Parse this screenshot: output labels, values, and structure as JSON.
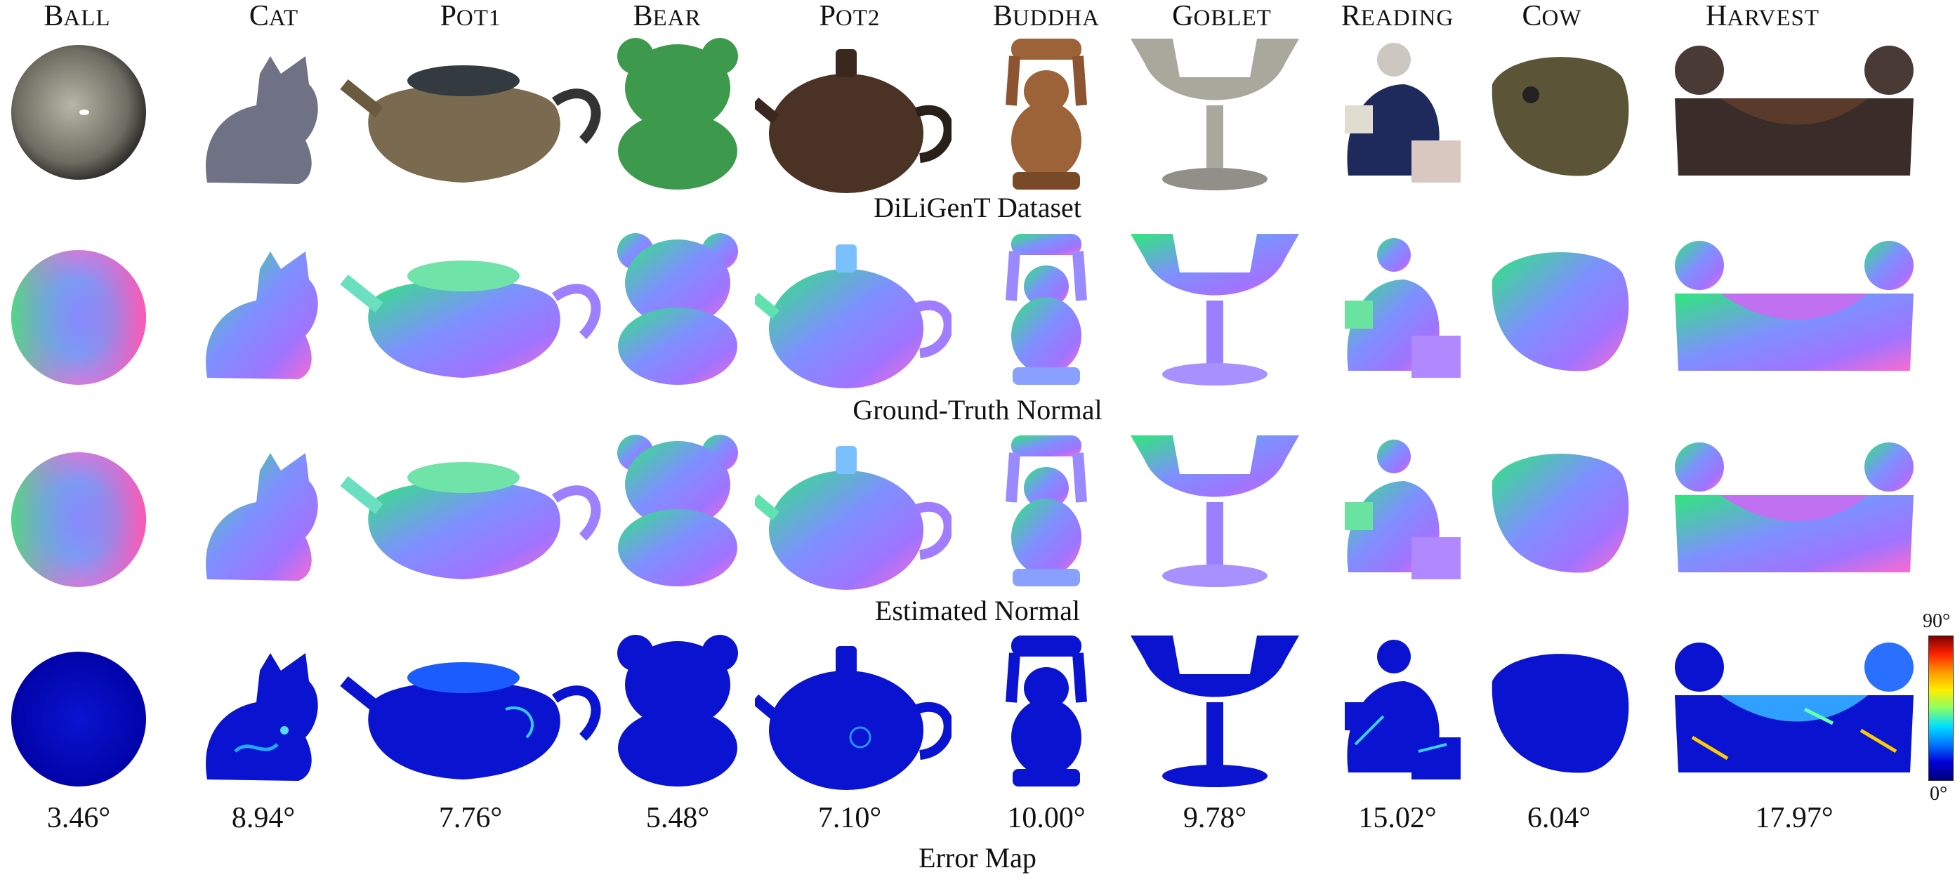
{
  "objects": [
    {
      "initial": "B",
      "rest": "all",
      "error": "3.46°"
    },
    {
      "initial": "C",
      "rest": "at",
      "error": "8.94°"
    },
    {
      "initial": "P",
      "rest": "ot1",
      "error": "7.76°"
    },
    {
      "initial": "B",
      "rest": "ear",
      "error": "5.48°"
    },
    {
      "initial": "P",
      "rest": "ot2",
      "error": "7.10°"
    },
    {
      "initial": "B",
      "rest": "uddha",
      "error": "10.00°"
    },
    {
      "initial": "G",
      "rest": "oblet",
      "error": "9.78°"
    },
    {
      "initial": "R",
      "rest": "eading",
      "error": "15.02°"
    },
    {
      "initial": "C",
      "rest": "ow",
      "error": "6.04°"
    },
    {
      "initial": "H",
      "rest": "arvest",
      "error": "17.97°"
    }
  ],
  "row_captions": {
    "dataset": "DiLiGenT Dataset",
    "ground_truth": "Ground-Truth Normal",
    "estimated": "Estimated Normal",
    "error_map": "Error Map"
  },
  "colorbar": {
    "max_label": "90°",
    "min_label": "0°"
  },
  "colors": {
    "ball_photo": "#8a8878",
    "cat_photo": "#6e7284",
    "pot1_photo": "#7a6a50",
    "bear_photo": "#3d9a4c",
    "pot2_photo": "#4a3224",
    "buddha_photo": "#9c6238",
    "goblet_photo": "#a8a89c",
    "reading_photo": "#1e2a5c",
    "cow_photo": "#5c5436",
    "harvest_photo": "#3a2c28",
    "error_base": "#0a14d0"
  }
}
